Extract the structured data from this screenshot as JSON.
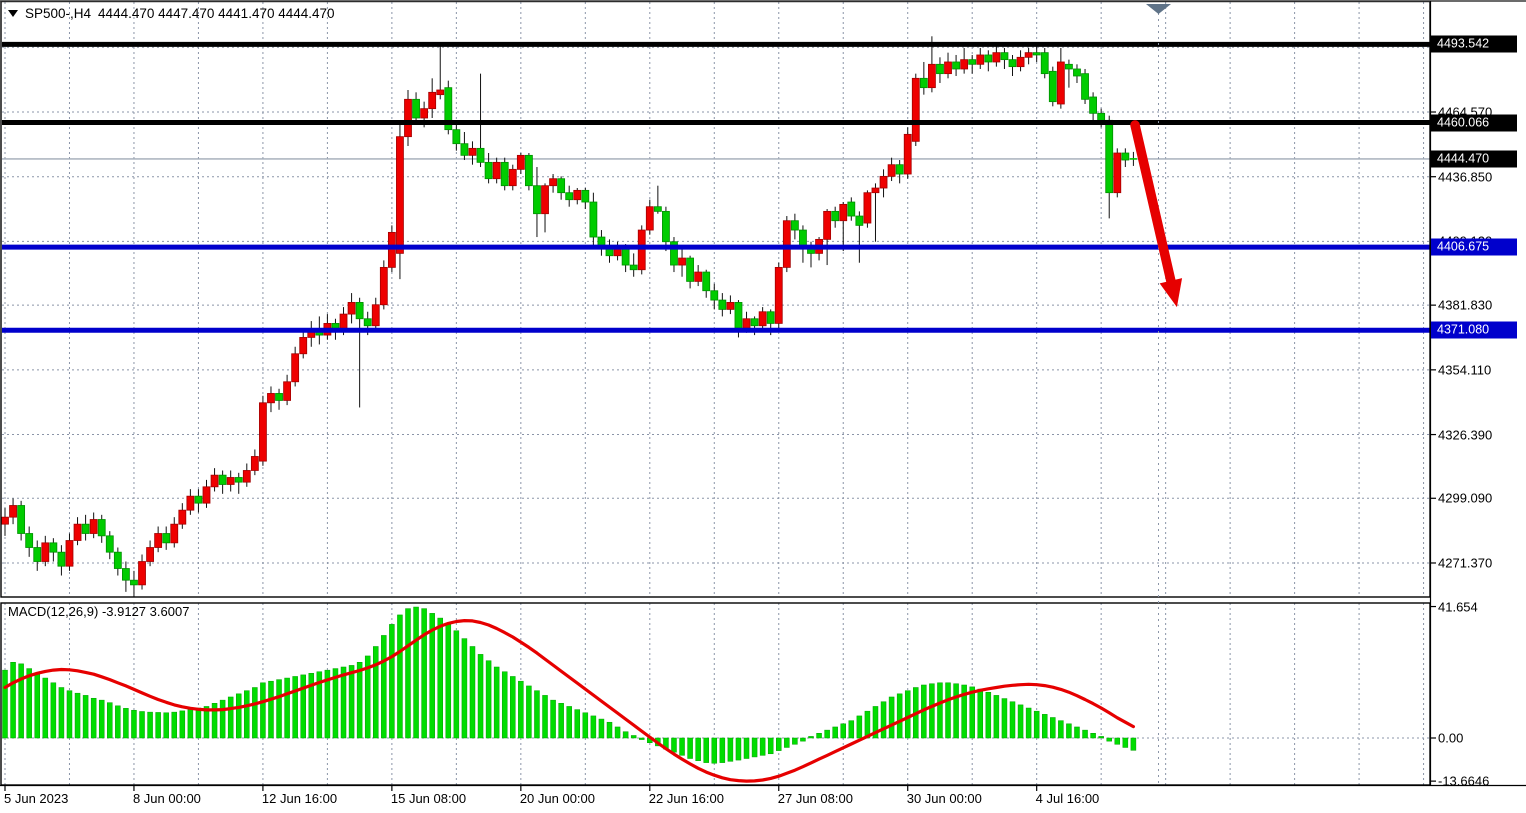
{
  "chart_data": {
    "type": "candlestick",
    "title_symbol": "SP500-,H4",
    "title_ohlc": "4444.470 4447.470 4441.470 4444.470",
    "symbol": "SP500-",
    "timeframe": "H4",
    "open": "4444.470",
    "high": "4447.470",
    "low": "4441.470",
    "close": "4444.470",
    "colors": {
      "bull_fill": "#ee0000",
      "bull_edge": "#a30000",
      "bear_fill": "#00cc00",
      "bear_edge": "#008f00",
      "wick": "#111111",
      "grid": "#8b95a8",
      "level_black": "#000000",
      "level_blue": "#0000cc",
      "bid_line": "#a0aab6",
      "macd_hist": "#00dd00",
      "macd_hist_edge": "#00a000",
      "macd_signal": "#e60000",
      "arrow": "#e60000",
      "marker": "#5f7388"
    },
    "price_axis": {
      "ticks": [
        {
          "label": "4464.570",
          "value": 4464.57
        },
        {
          "label": "4436.850",
          "value": 4436.85
        },
        {
          "label": "4409.120",
          "value": 4409.12
        },
        {
          "label": "4381.830",
          "value": 4381.83
        },
        {
          "label": "4354.110",
          "value": 4354.11
        },
        {
          "label": "4326.390",
          "value": 4326.39
        },
        {
          "label": "4299.090",
          "value": 4299.09
        },
        {
          "label": "4271.370",
          "value": 4271.37
        }
      ],
      "top_grid_value": 4492.29
    },
    "levels": [
      {
        "label": "4493.542",
        "value": 4493.542,
        "color": "black"
      },
      {
        "label": "4460.066",
        "value": 4460.066,
        "color": "black"
      },
      {
        "label": "4406.675",
        "value": 4406.675,
        "color": "blue"
      },
      {
        "label": "4371.080",
        "value": 4371.08,
        "color": "blue"
      }
    ],
    "bid": {
      "label": "4444.470",
      "value": 4444.47
    },
    "time_axis": [
      {
        "label": "5 Jun 2023",
        "bar": 0
      },
      {
        "label": "8 Jun 00:00",
        "bar": 16
      },
      {
        "label": "12 Jun 16:00",
        "bar": 32
      },
      {
        "label": "15 Jun 08:00",
        "bar": 48
      },
      {
        "label": "20 Jun 00:00",
        "bar": 64
      },
      {
        "label": "22 Jun 16:00",
        "bar": 80
      },
      {
        "label": "27 Jun 08:00",
        "bar": 96
      },
      {
        "label": "30 Jun 00:00",
        "bar": 112
      },
      {
        "label": "4 Jul 16:00",
        "bar": 128
      }
    ],
    "candles": [
      [
        4288,
        4295,
        4283,
        4291
      ],
      [
        4291,
        4299,
        4288,
        4296
      ],
      [
        4296,
        4298,
        4281,
        4284
      ],
      [
        4284,
        4287,
        4274,
        4278
      ],
      [
        4278,
        4281,
        4268,
        4272
      ],
      [
        4272,
        4283,
        4270,
        4280
      ],
      [
        4280,
        4282,
        4272,
        4276
      ],
      [
        4276,
        4279,
        4266,
        4270
      ],
      [
        4270,
        4284,
        4268,
        4281
      ],
      [
        4281,
        4291,
        4279,
        4288
      ],
      [
        4288,
        4292,
        4281,
        4284
      ],
      [
        4284,
        4293,
        4282,
        4290
      ],
      [
        4290,
        4292,
        4280,
        4283
      ],
      [
        4283,
        4285,
        4273,
        4276
      ],
      [
        4276,
        4278,
        4266,
        4269
      ],
      [
        4269,
        4272,
        4259,
        4264
      ],
      [
        4264,
        4268,
        4257,
        4262
      ],
      [
        4262,
        4275,
        4260,
        4272
      ],
      [
        4272,
        4281,
        4270,
        4278
      ],
      [
        4278,
        4287,
        4276,
        4284
      ],
      [
        4284,
        4287,
        4277,
        4280
      ],
      [
        4280,
        4291,
        4278,
        4288
      ],
      [
        4288,
        4297,
        4286,
        4294
      ],
      [
        4294,
        4303,
        4292,
        4300
      ],
      [
        4300,
        4303,
        4293,
        4297
      ],
      [
        4297,
        4307,
        4295,
        4304
      ],
      [
        4304,
        4312,
        4302,
        4309
      ],
      [
        4309,
        4311,
        4301,
        4305
      ],
      [
        4305,
        4311,
        4302,
        4308
      ],
      [
        4308,
        4310,
        4301,
        4306
      ],
      [
        4306,
        4314,
        4304,
        4311
      ],
      [
        4311,
        4320,
        4309,
        4317
      ],
      [
        4315,
        4343,
        4313,
        4340
      ],
      [
        4340,
        4347,
        4336,
        4344
      ],
      [
        4344,
        4346,
        4337,
        4341
      ],
      [
        4341,
        4352,
        4339,
        4349
      ],
      [
        4349,
        4364,
        4347,
        4361
      ],
      [
        4361,
        4371,
        4359,
        4368
      ],
      [
        4368,
        4375,
        4364,
        4371
      ],
      [
        4371,
        4377,
        4365,
        4369
      ],
      [
        4369,
        4378,
        4367,
        4374
      ],
      [
        4374,
        4376,
        4367,
        4371
      ],
      [
        4371,
        4381,
        4369,
        4378
      ],
      [
        4378,
        4387,
        4374,
        4383
      ],
      [
        4383,
        4385,
        4338,
        4376
      ],
      [
        4376,
        4379,
        4369,
        4373
      ],
      [
        4373,
        4385,
        4371,
        4382
      ],
      [
        4382,
        4401,
        4380,
        4398
      ],
      [
        4398,
        4416,
        4396,
        4413
      ],
      [
        4404,
        4459,
        4393,
        4454
      ],
      [
        4454,
        4474,
        4450,
        4470
      ],
      [
        4470,
        4473,
        4459,
        4462
      ],
      [
        4462,
        4469,
        4458,
        4466
      ],
      [
        4466,
        4479,
        4462,
        4473
      ],
      [
        4472,
        4493.5,
        4470,
        4474
      ],
      [
        4475,
        4478,
        4455,
        4457
      ],
      [
        4457,
        4460,
        4448,
        4451
      ],
      [
        4451,
        4456,
        4444,
        4446
      ],
      [
        4446,
        4452,
        4442,
        4449
      ],
      [
        4449,
        4481,
        4441,
        4443
      ],
      [
        4443,
        4447,
        4434,
        4436
      ],
      [
        4436,
        4445,
        4434,
        4443
      ],
      [
        4443,
        4445,
        4431,
        4433
      ],
      [
        4433,
        4442,
        4431,
        4440
      ],
      [
        4440,
        4447,
        4438,
        4446
      ],
      [
        4446,
        4447,
        4431,
        4433
      ],
      [
        4433,
        4441,
        4411,
        4421
      ],
      [
        4421,
        4434,
        4413,
        4433
      ],
      [
        4433,
        4438,
        4430,
        4436
      ],
      [
        4436,
        4437,
        4427,
        4430
      ],
      [
        4430,
        4433,
        4424,
        4427
      ],
      [
        4427,
        4432,
        4425,
        4431
      ],
      [
        4431,
        4432,
        4423,
        4426
      ],
      [
        4426,
        4430,
        4406,
        4411
      ],
      [
        4411,
        4414,
        4403,
        4406
      ],
      [
        4406,
        4410,
        4400,
        4403
      ],
      [
        4403,
        4409,
        4401,
        4407
      ],
      [
        4407,
        4408,
        4396,
        4399
      ],
      [
        4399,
        4404,
        4394,
        4397
      ],
      [
        4397,
        4416,
        4395,
        4414
      ],
      [
        4414,
        4427,
        4412,
        4424
      ],
      [
        4424,
        4433,
        4421,
        4422
      ],
      [
        4422,
        4424,
        4405,
        4409
      ],
      [
        4409,
        4411,
        4396,
        4399
      ],
      [
        4399,
        4406,
        4394,
        4402
      ],
      [
        4402,
        4403,
        4389,
        4392
      ],
      [
        4392,
        4399,
        4390,
        4396
      ],
      [
        4396,
        4397,
        4385,
        4388
      ],
      [
        4388,
        4391,
        4380,
        4384
      ],
      [
        4384,
        4387,
        4377,
        4380
      ],
      [
        4380,
        4386,
        4378,
        4383
      ],
      [
        4383,
        4384,
        4368,
        4372
      ],
      [
        4372,
        4379,
        4370,
        4376
      ],
      [
        4376,
        4377,
        4369,
        4373
      ],
      [
        4373,
        4381,
        4371,
        4379
      ],
      [
        4379,
        4380,
        4369,
        4374
      ],
      [
        4374,
        4400,
        4372,
        4398
      ],
      [
        4398,
        4420,
        4396,
        4418
      ],
      [
        4418,
        4421,
        4410,
        4414
      ],
      [
        4414,
        4416,
        4400,
        4407
      ],
      [
        4407,
        4409,
        4398,
        4404
      ],
      [
        4404,
        4411,
        4401,
        4410
      ],
      [
        4410,
        4423,
        4399,
        4422
      ],
      [
        4422,
        4424,
        4415,
        4418
      ],
      [
        4418,
        4426,
        4405,
        4425
      ],
      [
        4426,
        4428,
        4418,
        4420
      ],
      [
        4420,
        4422,
        4400,
        4416
      ],
      [
        4417,
        4431,
        4415,
        4430
      ],
      [
        4430,
        4434,
        4409,
        4432
      ],
      [
        4432,
        4440,
        4428,
        4437
      ],
      [
        4437,
        4445,
        4435,
        4442
      ],
      [
        4442,
        4444,
        4434,
        4438
      ],
      [
        4438,
        4458,
        4436,
        4455
      ],
      [
        4452,
        4481,
        4450,
        4479
      ],
      [
        4479,
        4486,
        4472,
        4475
      ],
      [
        4475,
        4497,
        4473,
        4485
      ],
      [
        4485,
        4488,
        4477,
        4481
      ],
      [
        4481,
        4490,
        4479,
        4486
      ],
      [
        4486,
        4489,
        4480,
        4483
      ],
      [
        4483,
        4492,
        4481,
        4487
      ],
      [
        4487,
        4489,
        4481,
        4485
      ],
      [
        4485,
        4492,
        4483,
        4489
      ],
      [
        4489,
        4491,
        4482,
        4486
      ],
      [
        4486,
        4493,
        4484,
        4490
      ],
      [
        4490,
        4492,
        4483,
        4487
      ],
      [
        4487,
        4489,
        4480,
        4484
      ],
      [
        4484,
        4491,
        4482,
        4488
      ],
      [
        4488,
        4492,
        4485,
        4490
      ],
      [
        4490,
        4493,
        4486,
        4489
      ],
      [
        4490,
        4492,
        4479,
        4481
      ],
      [
        4482,
        4484,
        4467,
        4469
      ],
      [
        4468,
        4492,
        4466,
        4486
      ],
      [
        4485,
        4487,
        4475,
        4483
      ],
      [
        4483,
        4485,
        4477,
        4480
      ],
      [
        4481,
        4483,
        4468,
        4470
      ],
      [
        4471,
        4473,
        4460,
        4464
      ],
      [
        4464,
        4466,
        4458,
        4461
      ],
      [
        4461,
        4463,
        4419,
        4430
      ],
      [
        4430,
        4449,
        4428,
        4447
      ],
      [
        4447,
        4449,
        4441,
        4444
      ],
      [
        4444.47,
        4447.47,
        4441.47,
        4444.47
      ]
    ],
    "macd": {
      "name": "MACD(12,26,9)",
      "macd_value": "-3.9127",
      "signal_value": "3.6007",
      "axis": [
        {
          "label": "41.654",
          "value": 41.654
        },
        {
          "label": "0.00",
          "value": 0
        },
        {
          "label": "-13.6646",
          "value": -13.6646
        }
      ],
      "hist": [
        21.5,
        24,
        23.5,
        22,
        20.5,
        19,
        17.5,
        16,
        15,
        14.2,
        13.5,
        12.6,
        12,
        11.2,
        10.2,
        9.4,
        8.8,
        8.4,
        8.2,
        8.1,
        8,
        8.2,
        8.6,
        9,
        9.5,
        10,
        11,
        12,
        13,
        14,
        15,
        16,
        17.5,
        18,
        18.5,
        19,
        19.5,
        20,
        20.5,
        21,
        21.5,
        22,
        22.5,
        23,
        24,
        26,
        29,
        32.5,
        36,
        39,
        41,
        41.5,
        41,
        39.5,
        38,
        36,
        34,
        31.5,
        29,
        26.5,
        24.5,
        22.5,
        21,
        19.5,
        18,
        16.5,
        15,
        13.5,
        12,
        11,
        10,
        9,
        8,
        7,
        6,
        5,
        3.5,
        2,
        0.8,
        -0.5,
        -1.5,
        -2.5,
        -3.5,
        -4.5,
        -5.5,
        -6.5,
        -7.2,
        -7.8,
        -8,
        -7.8,
        -7.4,
        -7,
        -6.5,
        -6,
        -5.5,
        -5,
        -4,
        -3,
        -2,
        -1,
        0.5,
        1.5,
        2.5,
        3.5,
        4.5,
        5.5,
        7,
        8.5,
        10,
        11.5,
        13,
        14,
        15,
        16,
        16.8,
        17.2,
        17.5,
        17.5,
        17.2,
        16.8,
        16.2,
        15.5,
        14.5,
        13.5,
        12.5,
        11.5,
        10.5,
        9.5,
        8.5,
        7.5,
        6.5,
        5.5,
        4.5,
        3.5,
        2.5,
        1.5,
        0.5,
        -1,
        -2,
        -3,
        -3.91
      ],
      "signal": [
        16,
        17.5,
        18.7,
        19.7,
        20.5,
        21.1,
        21.5,
        21.7,
        21.6,
        21.3,
        20.8,
        20.2,
        19.4,
        18.5,
        17.5,
        16.5,
        15.4,
        14.3,
        13.2,
        12.2,
        11.3,
        10.5,
        9.9,
        9.4,
        9.1,
        8.9,
        8.9,
        9,
        9.3,
        9.7,
        10.2,
        10.8,
        11.5,
        12.3,
        13.1,
        14,
        14.9,
        15.8,
        16.7,
        17.6,
        18.4,
        19.2,
        20,
        20.7,
        21.4,
        22.2,
        23.2,
        24.4,
        25.8,
        27.4,
        29.2,
        31,
        32.7,
        34.2,
        35.4,
        36.3,
        36.9,
        37.2,
        37.1,
        36.6,
        35.8,
        34.7,
        33.4,
        32,
        30.4,
        28.7,
        26.9,
        25,
        23.1,
        21.2,
        19.3,
        17.4,
        15.5,
        13.6,
        11.7,
        9.8,
        7.9,
        6,
        4.1,
        2.2,
        0.3,
        -1.6,
        -3.4,
        -5.1,
        -6.7,
        -8.2,
        -9.6,
        -10.8,
        -11.8,
        -12.6,
        -13.2,
        -13.5,
        -13.66,
        -13.6,
        -13.3,
        -12.8,
        -12.1,
        -11.2,
        -10.2,
        -9.1,
        -7.9,
        -6.7,
        -5.5,
        -4.3,
        -3.1,
        -1.9,
        -0.7,
        0.5,
        1.7,
        2.9,
        4.1,
        5.3,
        6.5,
        7.7,
        8.9,
        10,
        11.1,
        12.1,
        13,
        13.8,
        14.5,
        15.1,
        15.6,
        16,
        16.4,
        16.7,
        16.9,
        17,
        16.9,
        16.6,
        16.1,
        15.4,
        14.5,
        13.4,
        12.2,
        10.9,
        9.5,
        8,
        6.4,
        5,
        3.6
      ]
    },
    "annotations": [
      {
        "type": "arrow",
        "from": {
          "bar": 140.2,
          "price": 4459
        },
        "to": {
          "bar": 145.4,
          "price": 4381
        }
      }
    ]
  }
}
